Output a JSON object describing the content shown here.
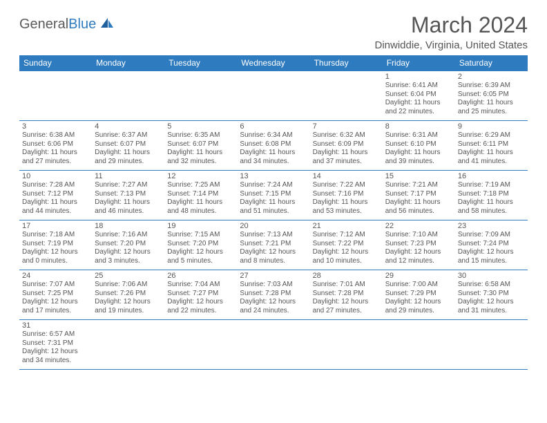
{
  "brand": {
    "general": "General",
    "blue": "Blue"
  },
  "title": "March 2024",
  "location": "Dinwiddie, Virginia, United States",
  "colors": {
    "header_bg": "#2f7bbf",
    "header_text": "#ffffff",
    "border": "#2f7bbf",
    "text": "#555555",
    "bg": "#ffffff"
  },
  "daysOfWeek": [
    "Sunday",
    "Monday",
    "Tuesday",
    "Wednesday",
    "Thursday",
    "Friday",
    "Saturday"
  ],
  "weeks": [
    [
      null,
      null,
      null,
      null,
      null,
      {
        "day": "1",
        "sunrise": "Sunrise: 6:41 AM",
        "sunset": "Sunset: 6:04 PM",
        "daylight": "Daylight: 11 hours and 22 minutes."
      },
      {
        "day": "2",
        "sunrise": "Sunrise: 6:39 AM",
        "sunset": "Sunset: 6:05 PM",
        "daylight": "Daylight: 11 hours and 25 minutes."
      }
    ],
    [
      {
        "day": "3",
        "sunrise": "Sunrise: 6:38 AM",
        "sunset": "Sunset: 6:06 PM",
        "daylight": "Daylight: 11 hours and 27 minutes."
      },
      {
        "day": "4",
        "sunrise": "Sunrise: 6:37 AM",
        "sunset": "Sunset: 6:07 PM",
        "daylight": "Daylight: 11 hours and 29 minutes."
      },
      {
        "day": "5",
        "sunrise": "Sunrise: 6:35 AM",
        "sunset": "Sunset: 6:07 PM",
        "daylight": "Daylight: 11 hours and 32 minutes."
      },
      {
        "day": "6",
        "sunrise": "Sunrise: 6:34 AM",
        "sunset": "Sunset: 6:08 PM",
        "daylight": "Daylight: 11 hours and 34 minutes."
      },
      {
        "day": "7",
        "sunrise": "Sunrise: 6:32 AM",
        "sunset": "Sunset: 6:09 PM",
        "daylight": "Daylight: 11 hours and 37 minutes."
      },
      {
        "day": "8",
        "sunrise": "Sunrise: 6:31 AM",
        "sunset": "Sunset: 6:10 PM",
        "daylight": "Daylight: 11 hours and 39 minutes."
      },
      {
        "day": "9",
        "sunrise": "Sunrise: 6:29 AM",
        "sunset": "Sunset: 6:11 PM",
        "daylight": "Daylight: 11 hours and 41 minutes."
      }
    ],
    [
      {
        "day": "10",
        "sunrise": "Sunrise: 7:28 AM",
        "sunset": "Sunset: 7:12 PM",
        "daylight": "Daylight: 11 hours and 44 minutes."
      },
      {
        "day": "11",
        "sunrise": "Sunrise: 7:27 AM",
        "sunset": "Sunset: 7:13 PM",
        "daylight": "Daylight: 11 hours and 46 minutes."
      },
      {
        "day": "12",
        "sunrise": "Sunrise: 7:25 AM",
        "sunset": "Sunset: 7:14 PM",
        "daylight": "Daylight: 11 hours and 48 minutes."
      },
      {
        "day": "13",
        "sunrise": "Sunrise: 7:24 AM",
        "sunset": "Sunset: 7:15 PM",
        "daylight": "Daylight: 11 hours and 51 minutes."
      },
      {
        "day": "14",
        "sunrise": "Sunrise: 7:22 AM",
        "sunset": "Sunset: 7:16 PM",
        "daylight": "Daylight: 11 hours and 53 minutes."
      },
      {
        "day": "15",
        "sunrise": "Sunrise: 7:21 AM",
        "sunset": "Sunset: 7:17 PM",
        "daylight": "Daylight: 11 hours and 56 minutes."
      },
      {
        "day": "16",
        "sunrise": "Sunrise: 7:19 AM",
        "sunset": "Sunset: 7:18 PM",
        "daylight": "Daylight: 11 hours and 58 minutes."
      }
    ],
    [
      {
        "day": "17",
        "sunrise": "Sunrise: 7:18 AM",
        "sunset": "Sunset: 7:19 PM",
        "daylight": "Daylight: 12 hours and 0 minutes."
      },
      {
        "day": "18",
        "sunrise": "Sunrise: 7:16 AM",
        "sunset": "Sunset: 7:20 PM",
        "daylight": "Daylight: 12 hours and 3 minutes."
      },
      {
        "day": "19",
        "sunrise": "Sunrise: 7:15 AM",
        "sunset": "Sunset: 7:20 PM",
        "daylight": "Daylight: 12 hours and 5 minutes."
      },
      {
        "day": "20",
        "sunrise": "Sunrise: 7:13 AM",
        "sunset": "Sunset: 7:21 PM",
        "daylight": "Daylight: 12 hours and 8 minutes."
      },
      {
        "day": "21",
        "sunrise": "Sunrise: 7:12 AM",
        "sunset": "Sunset: 7:22 PM",
        "daylight": "Daylight: 12 hours and 10 minutes."
      },
      {
        "day": "22",
        "sunrise": "Sunrise: 7:10 AM",
        "sunset": "Sunset: 7:23 PM",
        "daylight": "Daylight: 12 hours and 12 minutes."
      },
      {
        "day": "23",
        "sunrise": "Sunrise: 7:09 AM",
        "sunset": "Sunset: 7:24 PM",
        "daylight": "Daylight: 12 hours and 15 minutes."
      }
    ],
    [
      {
        "day": "24",
        "sunrise": "Sunrise: 7:07 AM",
        "sunset": "Sunset: 7:25 PM",
        "daylight": "Daylight: 12 hours and 17 minutes."
      },
      {
        "day": "25",
        "sunrise": "Sunrise: 7:06 AM",
        "sunset": "Sunset: 7:26 PM",
        "daylight": "Daylight: 12 hours and 19 minutes."
      },
      {
        "day": "26",
        "sunrise": "Sunrise: 7:04 AM",
        "sunset": "Sunset: 7:27 PM",
        "daylight": "Daylight: 12 hours and 22 minutes."
      },
      {
        "day": "27",
        "sunrise": "Sunrise: 7:03 AM",
        "sunset": "Sunset: 7:28 PM",
        "daylight": "Daylight: 12 hours and 24 minutes."
      },
      {
        "day": "28",
        "sunrise": "Sunrise: 7:01 AM",
        "sunset": "Sunset: 7:28 PM",
        "daylight": "Daylight: 12 hours and 27 minutes."
      },
      {
        "day": "29",
        "sunrise": "Sunrise: 7:00 AM",
        "sunset": "Sunset: 7:29 PM",
        "daylight": "Daylight: 12 hours and 29 minutes."
      },
      {
        "day": "30",
        "sunrise": "Sunrise: 6:58 AM",
        "sunset": "Sunset: 7:30 PM",
        "daylight": "Daylight: 12 hours and 31 minutes."
      }
    ],
    [
      {
        "day": "31",
        "sunrise": "Sunrise: 6:57 AM",
        "sunset": "Sunset: 7:31 PM",
        "daylight": "Daylight: 12 hours and 34 minutes."
      },
      null,
      null,
      null,
      null,
      null,
      null
    ]
  ]
}
